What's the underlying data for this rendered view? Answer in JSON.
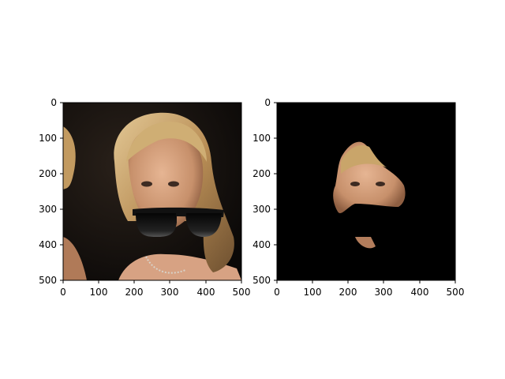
{
  "panels": [
    {
      "name": "original-with-sunglasses",
      "content": "photo of a smiling blonde woman with sunglasses overlaid on her mouth",
      "x_ticks": [
        "0",
        "100",
        "200",
        "300",
        "400",
        "500"
      ],
      "y_ticks": [
        "0",
        "100",
        "200",
        "300",
        "400",
        "500"
      ]
    },
    {
      "name": "masked-face",
      "content": "face region cut out on black background, mouth area blacked out",
      "x_ticks": [
        "0",
        "100",
        "200",
        "300",
        "400",
        "500"
      ],
      "y_ticks": [
        "0",
        "100",
        "200",
        "300",
        "400",
        "500"
      ]
    }
  ],
  "colors": {
    "background_black": "#000000",
    "skin": "#c8906a",
    "hair": "#c9a56a",
    "lens": "#1a1a1a"
  }
}
